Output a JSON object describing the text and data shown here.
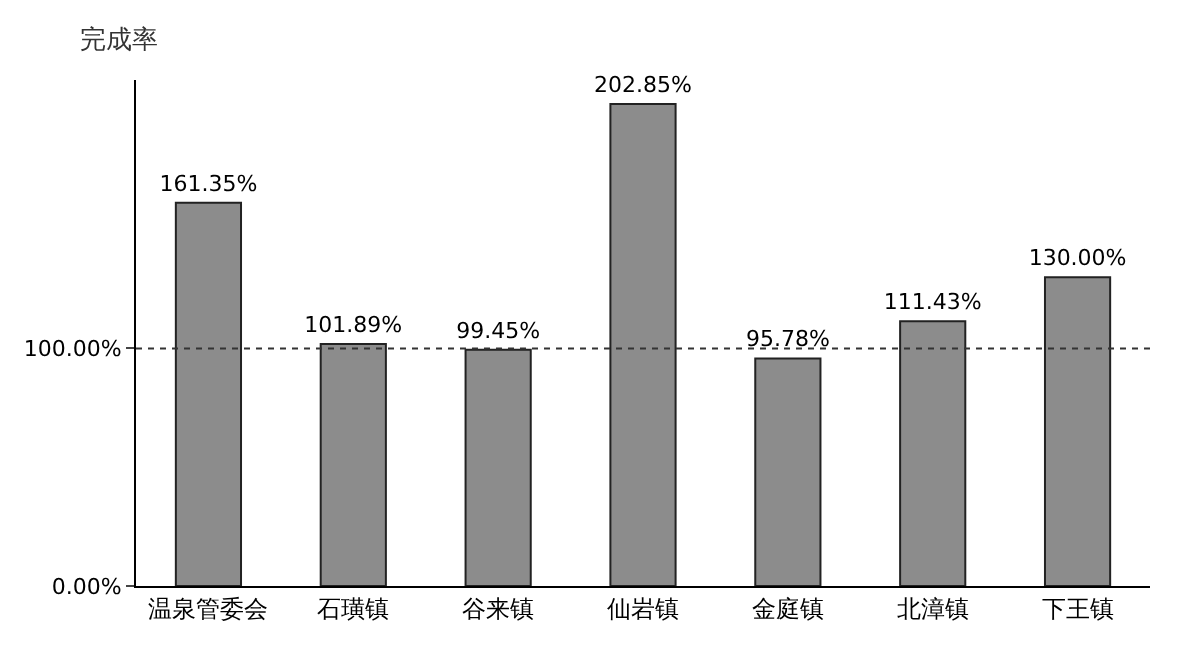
{
  "chart_data": {
    "type": "bar",
    "ylabel": "完成率",
    "categories": [
      "温泉管委会",
      "石璜镇",
      "谷来镇",
      "仙岩镇",
      "金庭镇",
      "北漳镇",
      "下王镇"
    ],
    "values": [
      161.35,
      101.89,
      99.45,
      202.85,
      95.78,
      111.43,
      130.0
    ],
    "value_labels": [
      "161.35%",
      "101.89%",
      "99.45%",
      "202.85%",
      "95.78%",
      "111.43%",
      "130.00%"
    ],
    "color": "#8c8c8c",
    "ylim": [
      0,
      213
    ],
    "yticks": [
      {
        "value": 0,
        "label": "0.00%"
      },
      {
        "value": 100,
        "label": "100.00%"
      }
    ],
    "ref_lines": [
      {
        "axis": "y",
        "value": 100,
        "label": null,
        "color": "#333333",
        "line_style": "dotted"
      }
    ]
  }
}
